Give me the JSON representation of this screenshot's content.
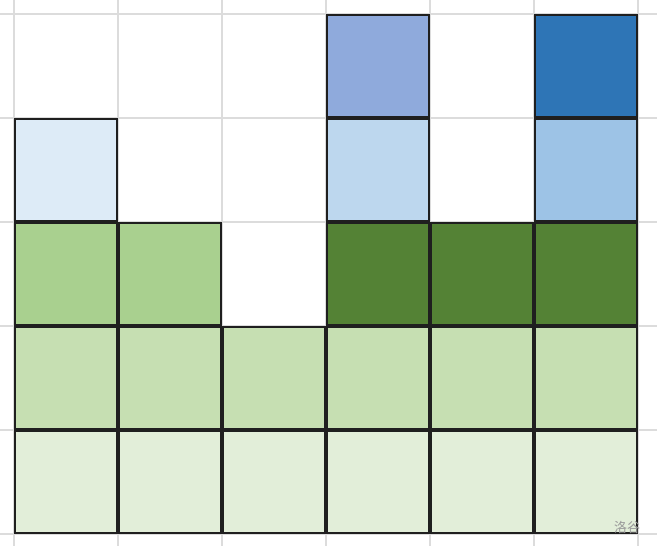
{
  "palette": {
    "light_green": "#e2eed9",
    "mid_green": "#c6dfb2",
    "green": "#a9d08f",
    "dark_green": "#548235",
    "pale_blue": "#ddebf7",
    "light_blue": "#bdd7ee",
    "sky_blue": "#9dc3e6",
    "periwinkle": "#8faadc",
    "dark_blue": "#2e75b6",
    "grid": "#dcdcdc",
    "outline": "#1f1f1f"
  },
  "rows": [
    [
      "light_green",
      "light_green",
      "light_green",
      "light_green",
      "light_green",
      "light_green"
    ],
    [
      "mid_green",
      "mid_green",
      "mid_green",
      "mid_green",
      "mid_green",
      "mid_green"
    ],
    [
      "green",
      "green",
      null,
      "dark_green",
      "dark_green",
      "dark_green"
    ],
    [
      "pale_blue",
      null,
      null,
      "light_blue",
      null,
      "sky_blue"
    ],
    [
      null,
      null,
      null,
      "periwinkle",
      null,
      "dark_blue"
    ]
  ],
  "watermark": "洛谷"
}
